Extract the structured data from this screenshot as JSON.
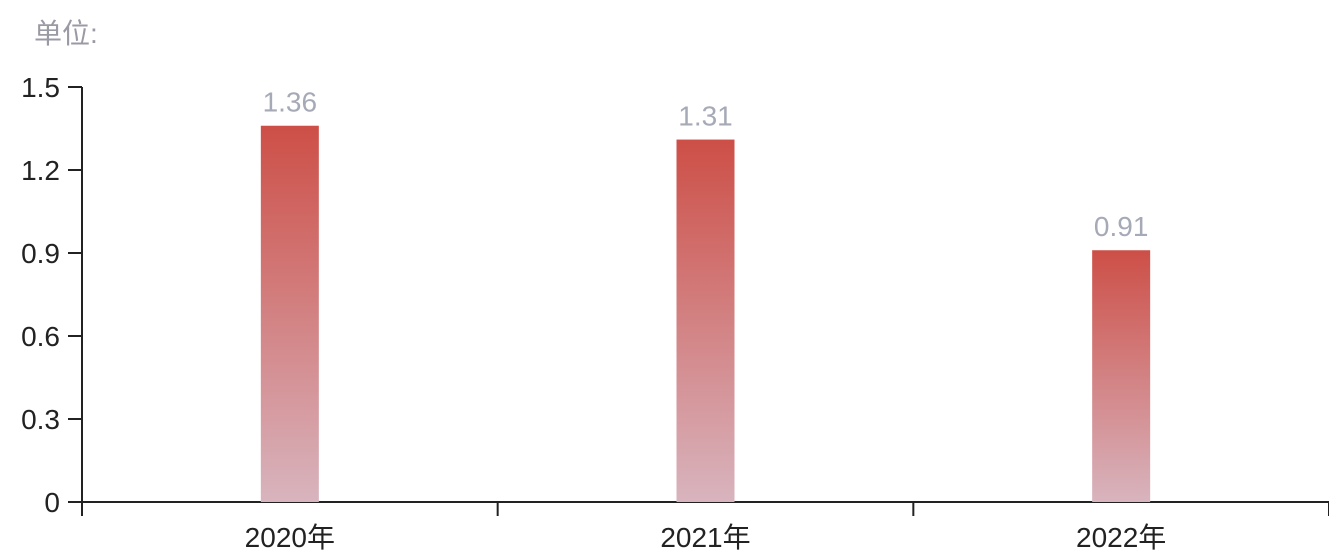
{
  "unit_label": "单位:",
  "colors": {
    "bar_top": "#cd4f47",
    "bar_bottom": "#d8b4be",
    "axis": "#222222",
    "label": "#a6a9b6"
  },
  "chart_data": {
    "type": "bar",
    "categories": [
      "2020年",
      "2021年",
      "2022年"
    ],
    "values": [
      1.36,
      1.31,
      0.91
    ],
    "data_labels": [
      "1.36",
      "1.31",
      "0.91"
    ],
    "ylim": [
      0,
      1.5
    ],
    "yticks": [
      0,
      0.3,
      0.6,
      0.9,
      1.2,
      1.5
    ],
    "ytick_labels": [
      "0",
      "0.3",
      "0.6",
      "0.9",
      "1.2",
      "1.5"
    ],
    "title": "",
    "xlabel": "",
    "ylabel": "",
    "grid": false
  }
}
